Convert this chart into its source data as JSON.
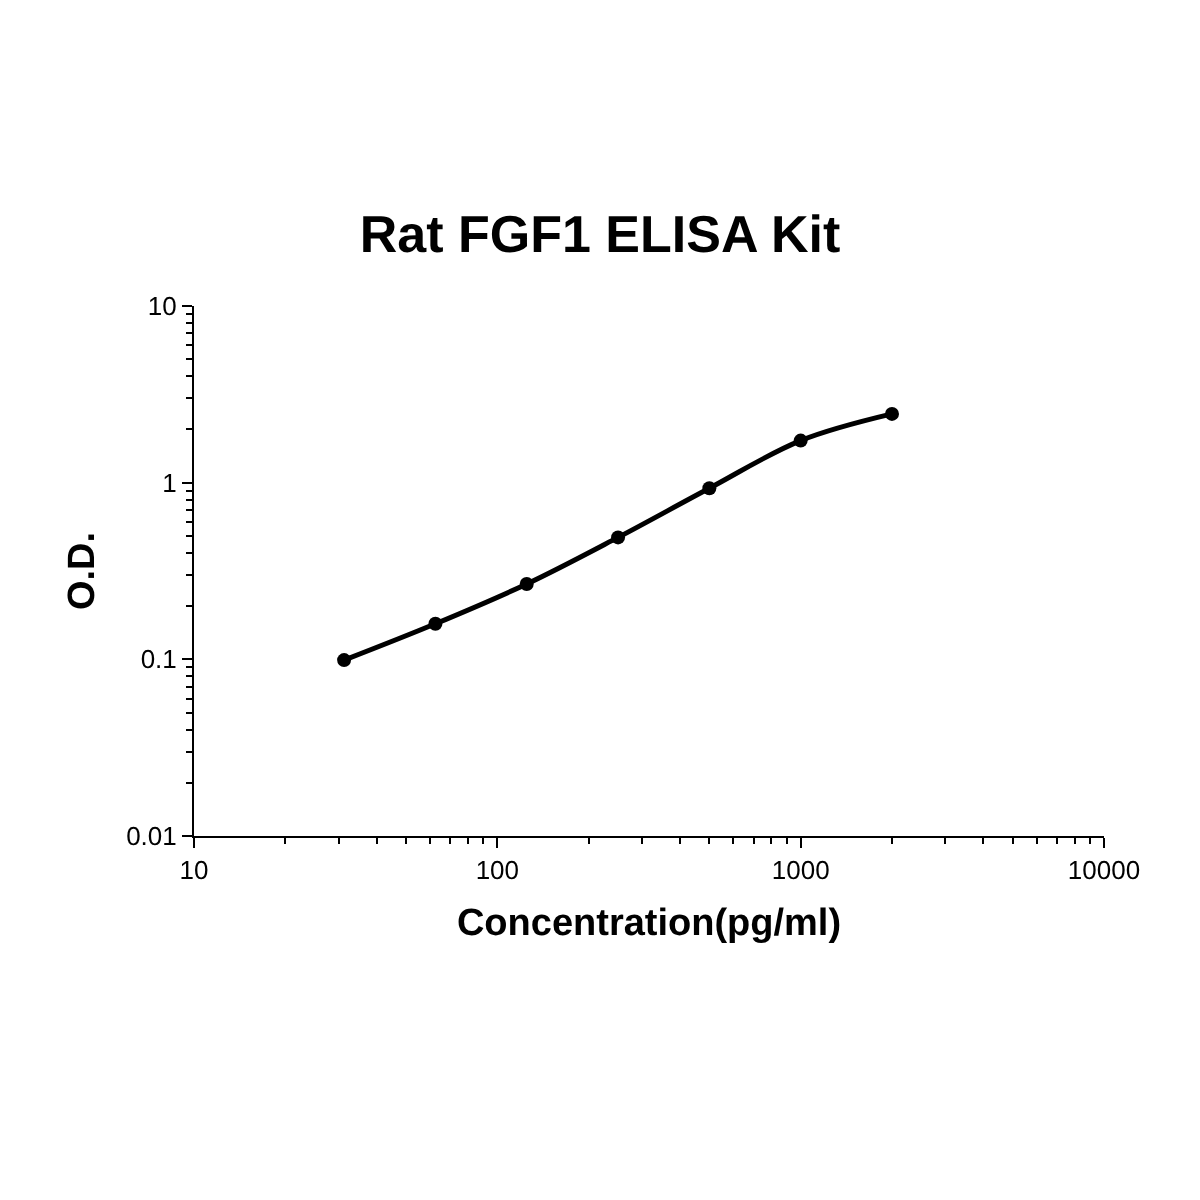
{
  "chart_data": {
    "type": "line",
    "title": "Rat FGF1 ELISA Kit",
    "xlabel": "Concentration(pg/ml)",
    "ylabel": "O.D.",
    "x": [
      31.25,
      62.5,
      125,
      250,
      500,
      1000,
      2000
    ],
    "series": [
      {
        "color": "#000000",
        "values": [
          0.099,
          0.159,
          0.267,
          0.49,
          0.93,
          1.73,
          2.45
        ]
      }
    ],
    "log": "xy",
    "xlim": [
      10,
      10000
    ],
    "ylim": [
      0.01,
      10
    ],
    "xticks": [
      10,
      100,
      1000,
      10000
    ],
    "yticks": [
      0.01,
      0.1,
      1,
      10
    ],
    "marker": "circle",
    "line_style": "solid"
  }
}
